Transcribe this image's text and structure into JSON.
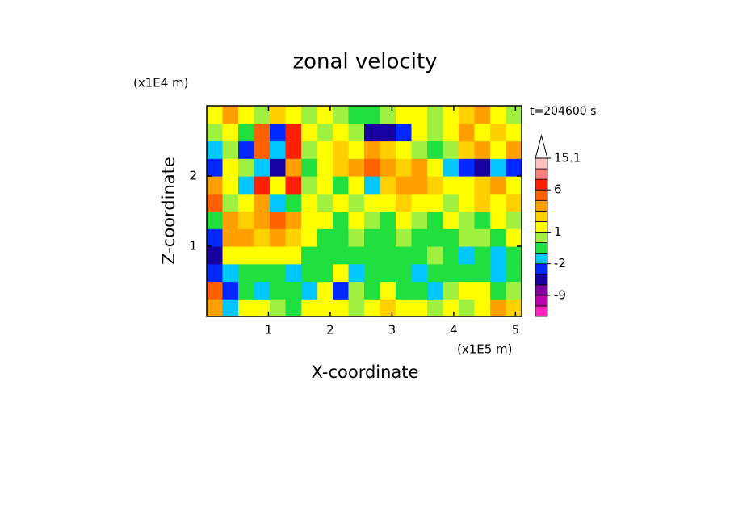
{
  "chart_data": {
    "type": "contour",
    "title": "zonal velocity",
    "x_label": "X-coordinate",
    "y_label": "Z-coordinate",
    "x_scale_label": "(x1E5 m)",
    "y_scale_label": "(x1E4 m)",
    "annotation": "t=204600 s",
    "xlim": [
      0,
      5.1
    ],
    "ylim": [
      0,
      3
    ],
    "xticks": [
      1,
      2,
      3,
      4,
      5
    ],
    "yticks": [
      1,
      2
    ],
    "xedges": [
      0,
      0.255,
      0.51,
      0.765,
      1.02,
      1.275,
      1.53,
      1.785,
      2.04,
      2.295,
      2.55,
      2.805,
      3.06,
      3.315,
      3.57,
      3.825,
      4.08,
      4.335,
      4.59,
      4.845,
      5.1
    ],
    "yedges": [
      0,
      0.25,
      0.5,
      0.75,
      1,
      1.25,
      1.5,
      1.75,
      2,
      2.25,
      2.5,
      2.75,
      3
    ],
    "z": [
      [
        3.5,
        -1.5,
        1.5,
        1.5,
        0.5,
        -0.5,
        1.5,
        1.5,
        1.5,
        0.5,
        1.5,
        2.5,
        1.5,
        1.5,
        0.5,
        1.5,
        0.5,
        1.5,
        3.5,
        2.5
      ],
      [
        5,
        -3,
        -0.5,
        -1.5,
        -0.5,
        -0.5,
        -1.5,
        1.5,
        -3,
        0.5,
        -0.5,
        1.5,
        -0.5,
        -0.5,
        -1.5,
        0.5,
        1.5,
        1.5,
        -0.5,
        0.5
      ],
      [
        -3,
        -1.5,
        -0.5,
        -0.5,
        -0.5,
        -1.5,
        -0.5,
        -0.5,
        1.5,
        -1.5,
        -0.5,
        -0.5,
        -0.5,
        -1.5,
        -0.5,
        -0.5,
        -0.5,
        -0.5,
        -1.5,
        -0.5
      ],
      [
        -5,
        1.5,
        1.5,
        1.5,
        1.5,
        1.5,
        -0.5,
        -0.5,
        -0.5,
        -0.5,
        -0.5,
        -0.5,
        -0.5,
        -0.5,
        0.5,
        -0.5,
        -1.5,
        -0.5,
        -1.5,
        -0.5
      ],
      [
        -3,
        3.5,
        3.5,
        2.5,
        3.5,
        2.5,
        1.5,
        -0.5,
        -0.5,
        0.5,
        -0.5,
        -0.5,
        0.5,
        -0.5,
        -0.5,
        -0.5,
        0.5,
        0.5,
        -0.5,
        1.5
      ],
      [
        -0.5,
        3.5,
        2.5,
        3.5,
        5,
        3.5,
        1.5,
        1.5,
        -0.5,
        1.5,
        0.5,
        -0.5,
        1.5,
        0.5,
        -0.5,
        1.5,
        0.5,
        -0.5,
        1.5,
        0.5
      ],
      [
        4,
        0.5,
        1.5,
        3.5,
        -1.5,
        -0.5,
        1.5,
        0.5,
        1.5,
        0.5,
        1.5,
        1.5,
        2.5,
        1.5,
        1.5,
        0.5,
        1.5,
        2.5,
        1.5,
        2.5
      ],
      [
        3.5,
        1.5,
        -1.5,
        7,
        1.5,
        7,
        0.5,
        1.5,
        -0.5,
        1.5,
        -1.5,
        2.5,
        3.5,
        3.5,
        2.5,
        1.5,
        1.5,
        2.5,
        3.5,
        1.5
      ],
      [
        -3,
        1.5,
        0.5,
        -1.5,
        -5,
        3.5,
        -0.5,
        1.5,
        2.5,
        3.5,
        4,
        3.5,
        2.5,
        3.5,
        1.5,
        -1.5,
        -3,
        -5,
        -1.5,
        -3
      ],
      [
        -1.5,
        0.5,
        -3,
        5,
        -1.5,
        7,
        0.5,
        1.5,
        2.5,
        1.5,
        3.5,
        2.5,
        1.5,
        0.5,
        -0.5,
        0.5,
        2.5,
        3.5,
        1.5,
        3.5
      ],
      [
        0.5,
        1.5,
        -0.5,
        4,
        -3,
        7,
        1.5,
        0.5,
        1.5,
        0.5,
        -5,
        -5,
        -3,
        1.5,
        0.5,
        1.5,
        3.5,
        1.5,
        2.5,
        1.5
      ],
      [
        1.5,
        3.5,
        1.5,
        0.5,
        2.5,
        1.5,
        0.5,
        1.5,
        0.5,
        -0.5,
        -0.5,
        0.5,
        1.5,
        1.5,
        0.5,
        1.5,
        2.5,
        3.5,
        1.5,
        0.5
      ]
    ],
    "colorbar": {
      "levels": [
        -15,
        -12,
        -9,
        -6,
        -4,
        -2,
        -1,
        0,
        1,
        2,
        3,
        4,
        6,
        9,
        12,
        15.1
      ],
      "colors": [
        "#ff20c0",
        "#c000b0",
        "#8000a0",
        "#1800a0",
        "#0028ff",
        "#00c8ff",
        "#20e040",
        "#a0f040",
        "#ffff00",
        "#ffd000",
        "#ffa000",
        "#ff6000",
        "#ff2000",
        "#ff8080",
        "#ffc0c0"
      ],
      "ticks": [
        15.1,
        6,
        1,
        -2,
        -9
      ]
    }
  }
}
